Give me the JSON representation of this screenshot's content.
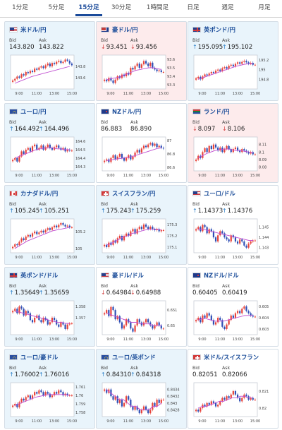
{
  "tabs": [
    {
      "label": "1分足",
      "width": 57
    },
    {
      "label": "5分足",
      "width": 46
    },
    {
      "label": "15分足",
      "width": 46,
      "active": true
    },
    {
      "label": "30分足",
      "width": 46
    },
    {
      "label": "1時間足",
      "width": 57
    },
    {
      "label": "日足",
      "width": 44
    },
    {
      "label": "週足",
      "width": 54
    },
    {
      "label": "月足",
      "width": 50
    }
  ],
  "labels": {
    "bid": "Bid",
    "ask": "Ask"
  },
  "x_ticks": [
    "9:00",
    "11:00",
    "13:00",
    "15:00"
  ],
  "colors": {
    "up_candle": "#e8453c",
    "down_candle": "#2f4fb5",
    "ma_line": "#c04dd0",
    "up_arrow": "#2a7fc9",
    "down_arrow": "#d23d3d"
  },
  "cards": [
    {
      "id": "usdjpy",
      "name": "米ドル/円",
      "flag": "us",
      "trend": "up",
      "bid": "143.820",
      "ask": "143.822",
      "bid_dir": "",
      "ask_dir": "",
      "chart": {
        "type": "candlestick",
        "ylim": [
          143.4,
          144.0
        ],
        "yticks": [
          "143.8",
          "143.6"
        ],
        "closes": [
          143.55,
          143.58,
          143.62,
          143.6,
          143.66,
          143.64,
          143.7,
          143.68,
          143.72,
          143.7,
          143.76,
          143.74,
          143.78,
          143.8,
          143.77,
          143.82,
          143.85,
          143.8,
          143.86,
          143.84,
          143.88,
          143.9,
          143.86,
          143.88,
          143.92,
          143.9,
          143.85,
          143.82
        ],
        "ma": [
          143.5,
          143.53,
          143.56,
          143.59,
          143.62,
          143.64,
          143.66,
          143.68,
          143.7,
          143.72,
          143.74,
          143.76,
          143.78,
          143.8
        ]
      }
    },
    {
      "id": "audjpy",
      "name": "豪ドル/円",
      "flag": "au",
      "trend": "down",
      "bid": "93.451",
      "ask": "93.456",
      "bid_dir": "down",
      "ask_dir": "down",
      "chart": {
        "type": "candlestick",
        "ylim": [
          93.25,
          93.65
        ],
        "yticks": [
          "93.6",
          "93.5",
          "93.4",
          "93.3"
        ],
        "closes": [
          93.36,
          93.34,
          93.38,
          93.35,
          93.32,
          93.36,
          93.4,
          93.38,
          93.42,
          93.4,
          93.44,
          93.42,
          93.5,
          93.48,
          93.52,
          93.55,
          93.5,
          93.54,
          93.58,
          93.55,
          93.52,
          93.56,
          93.5,
          93.48,
          93.46,
          93.47,
          93.45,
          93.45
        ],
        "ma": [
          93.36,
          93.37,
          93.38,
          93.39,
          93.41,
          93.43,
          93.45,
          93.47,
          93.48,
          93.49,
          93.5,
          93.5,
          93.49,
          93.48
        ]
      }
    },
    {
      "id": "gbpjpy",
      "name": "英ポンド/円",
      "flag": "gb",
      "trend": "up",
      "bid": "195.095",
      "ask": "195.102",
      "bid_dir": "up",
      "ask_dir": "up",
      "chart": {
        "type": "candlestick",
        "ylim": [
          194.6,
          195.3
        ],
        "yticks": [
          "195.2",
          "195",
          "194.8"
        ],
        "closes": [
          194.82,
          194.85,
          194.8,
          194.86,
          194.9,
          194.88,
          194.92,
          194.95,
          194.93,
          194.98,
          195.0,
          194.97,
          195.03,
          195.05,
          195.02,
          195.08,
          195.1,
          195.07,
          195.12,
          195.15,
          195.12,
          195.16,
          195.18,
          195.15,
          195.12,
          195.14,
          195.1,
          195.1
        ],
        "ma": [
          194.8,
          194.83,
          194.86,
          194.89,
          194.92,
          194.95,
          194.98,
          195.01,
          195.04,
          195.07,
          195.09,
          195.11,
          195.12,
          195.12
        ]
      }
    },
    {
      "id": "eurjpy",
      "name": "ユーロ/円",
      "flag": "eu",
      "trend": "up",
      "bid": "164.492",
      "ask": "164.496",
      "bid_dir": "up",
      "ask_dir": "up",
      "chart": {
        "type": "candlestick",
        "ylim": [
          164.25,
          164.65
        ],
        "yticks": [
          "164.6",
          "164.5",
          "164.4",
          "164.3"
        ],
        "closes": [
          164.38,
          164.4,
          164.36,
          164.42,
          164.48,
          164.45,
          164.5,
          164.52,
          164.48,
          164.54,
          164.56,
          164.5,
          164.52,
          164.55,
          164.5,
          164.53,
          164.56,
          164.52,
          164.5,
          164.53,
          164.55,
          164.52,
          164.5,
          164.52,
          164.48,
          164.5,
          164.49,
          164.49
        ],
        "ma": [
          164.4,
          164.42,
          164.44,
          164.46,
          164.48,
          164.5,
          164.51,
          164.52,
          164.52,
          164.52,
          164.51,
          164.51,
          164.5,
          164.5
        ]
      }
    },
    {
      "id": "nzdjpy",
      "name": "NZドル/円",
      "flag": "nz",
      "trend": "neutral",
      "bid": "86.883",
      "ask": "86.890",
      "bid_dir": "",
      "ask_dir": "",
      "chart": {
        "type": "candlestick",
        "ylim": [
          86.55,
          87.05
        ],
        "yticks": [
          "87",
          "86.8",
          "86.6"
        ],
        "closes": [
          86.7,
          86.72,
          86.68,
          86.74,
          86.78,
          86.72,
          86.76,
          86.8,
          86.74,
          86.7,
          86.74,
          86.78,
          86.72,
          86.76,
          86.82,
          86.86,
          86.82,
          86.88,
          86.92,
          86.9,
          86.94,
          86.96,
          86.92,
          86.95,
          86.9,
          86.92,
          86.89,
          86.88
        ],
        "ma": [
          86.7,
          86.71,
          86.72,
          86.73,
          86.74,
          86.75,
          86.76,
          86.78,
          86.8,
          86.82,
          86.84,
          86.86,
          86.88,
          86.89
        ]
      }
    },
    {
      "id": "zarjpy",
      "name": "ランド/円",
      "flag": "za",
      "trend": "down",
      "bid": "8.097",
      "ask": "8.106",
      "bid_dir": "down",
      "ask_dir": "down",
      "chart": {
        "type": "candlestick",
        "ylim": [
          8.075,
          8.12
        ],
        "yticks": [
          "8.11",
          "8.1",
          "8.09",
          "8.08"
        ],
        "closes": [
          8.09,
          8.095,
          8.092,
          8.1,
          8.105,
          8.1,
          8.108,
          8.104,
          8.11,
          8.106,
          8.102,
          8.106,
          8.1,
          8.104,
          8.108,
          8.104,
          8.1,
          8.104,
          8.106,
          8.102,
          8.1,
          8.104,
          8.102,
          8.1,
          8.098,
          8.1,
          8.097,
          8.097
        ],
        "ma": [
          8.092,
          8.095,
          8.098,
          8.1,
          8.102,
          8.103,
          8.104,
          8.104,
          8.103,
          8.102,
          8.102,
          8.101,
          8.1,
          8.099
        ]
      }
    },
    {
      "id": "cadjpy",
      "name": "カナダドル/円",
      "flag": "ca",
      "trend": "up",
      "bid": "105.245",
      "ask": "105.251",
      "bid_dir": "up",
      "ask_dir": "up",
      "chart": {
        "type": "candlestick",
        "ylim": [
          104.95,
          105.35
        ],
        "yticks": [
          "105.2",
          "105"
        ],
        "closes": [
          105.02,
          105.05,
          105.04,
          105.08,
          105.12,
          105.1,
          105.14,
          105.16,
          105.14,
          105.18,
          105.2,
          105.17,
          105.19,
          105.21,
          105.19,
          105.22,
          105.24,
          105.22,
          105.25,
          105.27,
          105.25,
          105.28,
          105.3,
          105.28,
          105.26,
          105.27,
          105.25,
          105.25
        ],
        "ma": [
          105.0,
          105.03,
          105.06,
          105.09,
          105.11,
          105.13,
          105.15,
          105.17,
          105.19,
          105.21,
          105.22,
          105.23,
          105.24,
          105.25
        ]
      }
    },
    {
      "id": "chfjpy",
      "name": "スイスフラン/円",
      "flag": "ch",
      "trend": "up",
      "bid": "175.243",
      "ask": "175.259",
      "bid_dir": "up",
      "ask_dir": "up",
      "chart": {
        "type": "candlestick",
        "ylim": [
          175.05,
          175.35
        ],
        "yticks": [
          "175.3",
          "175.2",
          "175.1"
        ],
        "closes": [
          175.12,
          175.1,
          175.14,
          175.12,
          175.16,
          175.14,
          175.18,
          175.2,
          175.16,
          175.2,
          175.22,
          175.2,
          175.24,
          175.26,
          175.22,
          175.26,
          175.28,
          175.26,
          175.3,
          175.28,
          175.26,
          175.28,
          175.26,
          175.25,
          175.26,
          175.24,
          175.25,
          175.25
        ],
        "ma": [
          175.12,
          175.13,
          175.15,
          175.17,
          175.19,
          175.2,
          175.22,
          175.23,
          175.24,
          175.25,
          175.26,
          175.26,
          175.26,
          175.25
        ]
      }
    },
    {
      "id": "eurusd",
      "name": "ユーロ/ドル",
      "flag": "us",
      "trend": "neutral",
      "bid": "1.14373",
      "ask": "1.14376",
      "bid_dir": "up",
      "ask_dir": "up",
      "chart": {
        "type": "candlestick",
        "ylim": [
          1.1425,
          1.1458
        ],
        "yticks": [
          "1.145",
          "1.144",
          "1.143"
        ],
        "closes": [
          1.1448,
          1.145,
          1.1446,
          1.1452,
          1.145,
          1.1444,
          1.1448,
          1.1446,
          1.144,
          1.1436,
          1.1442,
          1.1446,
          1.1444,
          1.144,
          1.1438,
          1.1436,
          1.1442,
          1.144,
          1.1436,
          1.1434,
          1.1438,
          1.1436,
          1.1432,
          1.143,
          1.1434,
          1.1436,
          1.1437,
          1.1437
        ],
        "ma": [
          1.1448,
          1.1448,
          1.1447,
          1.1446,
          1.1445,
          1.1444,
          1.1443,
          1.1442,
          1.1441,
          1.144,
          1.1439,
          1.1438,
          1.1437,
          1.1437
        ]
      }
    },
    {
      "id": "gbpusd",
      "name": "英ポンド/ドル",
      "flag": "gb",
      "trend": "up",
      "bid": "1.35649",
      "ask": "1.35659",
      "bid_dir": "up",
      "ask_dir": "up",
      "chart": {
        "type": "candlestick",
        "ylim": [
          1.3555,
          1.3585
        ],
        "yticks": [
          "1.358",
          "1.357"
        ],
        "closes": [
          1.3576,
          1.3578,
          1.3574,
          1.358,
          1.3578,
          1.3572,
          1.3576,
          1.3574,
          1.3568,
          1.3566,
          1.357,
          1.3572,
          1.3568,
          1.3566,
          1.357,
          1.3568,
          1.3564,
          1.3566,
          1.357,
          1.3568,
          1.3564,
          1.3562,
          1.3566,
          1.3564,
          1.356,
          1.3564,
          1.3565,
          1.3565
        ],
        "ma": [
          1.3576,
          1.3575,
          1.3574,
          1.3573,
          1.3572,
          1.3571,
          1.357,
          1.3569,
          1.3568,
          1.3567,
          1.3566,
          1.3566,
          1.3565,
          1.3565
        ]
      }
    },
    {
      "id": "audusd",
      "name": "豪ドル/ドル",
      "flag": "us",
      "trend": "neutral",
      "bid": "0.64984",
      "ask": "0.64988",
      "bid_dir": "down",
      "ask_dir": "down",
      "chart": {
        "type": "candlestick",
        "ylim": [
          0.6494,
          0.6516
        ],
        "yticks": [
          "0.651",
          "0.65"
        ],
        "closes": [
          0.6508,
          0.651,
          0.6506,
          0.6512,
          0.651,
          0.6504,
          0.6506,
          0.6502,
          0.6498,
          0.65,
          0.6504,
          0.6502,
          0.6498,
          0.6496,
          0.65,
          0.6504,
          0.6502,
          0.65,
          0.6502,
          0.6504,
          0.6502,
          0.65,
          0.6498,
          0.65,
          0.6502,
          0.65,
          0.6498,
          0.6498
        ],
        "ma": [
          0.6508,
          0.6507,
          0.6506,
          0.6505,
          0.6504,
          0.6503,
          0.6502,
          0.6502,
          0.6501,
          0.6501,
          0.6501,
          0.65,
          0.65,
          0.65
        ]
      }
    },
    {
      "id": "nzdusd",
      "name": "NZドル/ドル",
      "flag": "nz",
      "trend": "neutral",
      "bid": "0.60405",
      "ask": "0.60419",
      "bid_dir": "",
      "ask_dir": "",
      "chart": {
        "type": "candlestick",
        "ylim": [
          0.6025,
          0.6055
        ],
        "yticks": [
          "0.605",
          "0.604",
          "0.603"
        ],
        "closes": [
          0.6038,
          0.604,
          0.6036,
          0.6042,
          0.604,
          0.6044,
          0.6042,
          0.6038,
          0.6034,
          0.6036,
          0.604,
          0.6038,
          0.6032,
          0.603,
          0.6034,
          0.6038,
          0.6042,
          0.604,
          0.6044,
          0.6046,
          0.6044,
          0.6048,
          0.605,
          0.6046,
          0.6044,
          0.6042,
          0.6041,
          0.6041
        ],
        "ma": [
          0.6038,
          0.6039,
          0.6039,
          0.6038,
          0.6037,
          0.6037,
          0.6037,
          0.6038,
          0.6039,
          0.604,
          0.6041,
          0.6042,
          0.6042,
          0.6042
        ]
      }
    },
    {
      "id": "euraud",
      "name": "ユーロ/豪ドル",
      "flag": "eu",
      "trend": "up",
      "bid": "1.76002",
      "ask": "1.76016",
      "bid_dir": "up",
      "ask_dir": "up",
      "chart": {
        "type": "candlestick",
        "ylim": [
          1.7575,
          1.7615
        ],
        "yticks": [
          "1.761",
          "1.76",
          "1.759",
          "1.758"
        ],
        "closes": [
          1.7588,
          1.759,
          1.7586,
          1.7592,
          1.7596,
          1.7594,
          1.7598,
          1.76,
          1.7596,
          1.76,
          1.7604,
          1.7602,
          1.7606,
          1.7604,
          1.76,
          1.7604,
          1.7602,
          1.7598,
          1.76,
          1.7604,
          1.7602,
          1.7606,
          1.7604,
          1.76,
          1.7602,
          1.76,
          1.76,
          1.76
        ],
        "ma": [
          1.7588,
          1.759,
          1.7592,
          1.7594,
          1.7596,
          1.7598,
          1.7599,
          1.76,
          1.7601,
          1.7601,
          1.7601,
          1.7601,
          1.7601,
          1.76
        ]
      }
    },
    {
      "id": "eurgbp",
      "name": "ユーロ/英ポンド",
      "flag": "eu",
      "trend": "up",
      "bid": "0.84310",
      "ask": "0.84318",
      "bid_dir": "up",
      "ask_dir": "up",
      "chart": {
        "type": "candlestick",
        "ylim": [
          0.8426,
          0.8436
        ],
        "yticks": [
          "0.8434",
          "0.8432",
          "0.843",
          "0.8428"
        ],
        "closes": [
          0.8434,
          0.8433,
          0.8434,
          0.8432,
          0.8431,
          0.8432,
          0.843,
          0.8431,
          0.8429,
          0.843,
          0.8432,
          0.8431,
          0.8429,
          0.8428,
          0.8429,
          0.8428,
          0.8427,
          0.8428,
          0.8429,
          0.8428,
          0.8427,
          0.8428,
          0.843,
          0.8429,
          0.8431,
          0.843,
          0.8431,
          0.8431
        ],
        "ma": [
          0.8434,
          0.8433,
          0.8432,
          0.8431,
          0.8431,
          0.843,
          0.8429,
          0.8429,
          0.8428,
          0.8428,
          0.8428,
          0.8429,
          0.8429,
          0.843
        ]
      }
    },
    {
      "id": "usdchf",
      "name": "米ドル/スイスフラン",
      "flag": "ch",
      "trend": "neutral",
      "bid": "0.82051",
      "ask": "0.82066",
      "bid_dir": "",
      "ask_dir": "",
      "chart": {
        "type": "candlestick",
        "ylim": [
          0.8195,
          0.8215
        ],
        "yticks": [
          "0.821",
          "0.82"
        ],
        "closes": [
          0.8199,
          0.8198,
          0.82,
          0.8202,
          0.8201,
          0.8203,
          0.8202,
          0.8204,
          0.8203,
          0.8201,
          0.8202,
          0.8204,
          0.8206,
          0.8205,
          0.8207,
          0.8206,
          0.8208,
          0.821,
          0.8208,
          0.8206,
          0.8204,
          0.8206,
          0.8208,
          0.8207,
          0.8205,
          0.8206,
          0.8205,
          0.8205
        ],
        "ma": [
          0.82,
          0.8201,
          0.8201,
          0.8202,
          0.8203,
          0.8204,
          0.8204,
          0.8205,
          0.8206,
          0.8206,
          0.8207,
          0.8207,
          0.8206,
          0.8206
        ]
      }
    }
  ]
}
